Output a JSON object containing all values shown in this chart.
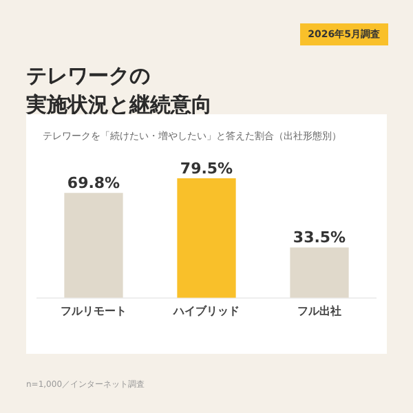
{
  "chart_data": {
    "type": "bar",
    "title": "テレワークの実施状況と継続意向",
    "subtitle": "テレワークを「続けたい・増やしたい」と答えた割合（出社形態別）",
    "annotations": [
      "2026年5月調査",
      "n=1,000／インターネット調査"
    ],
    "categories": [
      "フルリモート",
      "ハイブリッド",
      "フル出社"
    ],
    "values": [
      69.8,
      79.5,
      33.5
    ],
    "value_labels": [
      "69.8%",
      "79.5%",
      "33.5%"
    ],
    "colors": [
      "#e0d9cb",
      "#f9c02a",
      "#e0d9cb"
    ],
    "grid": false,
    "legend": false
  }
}
